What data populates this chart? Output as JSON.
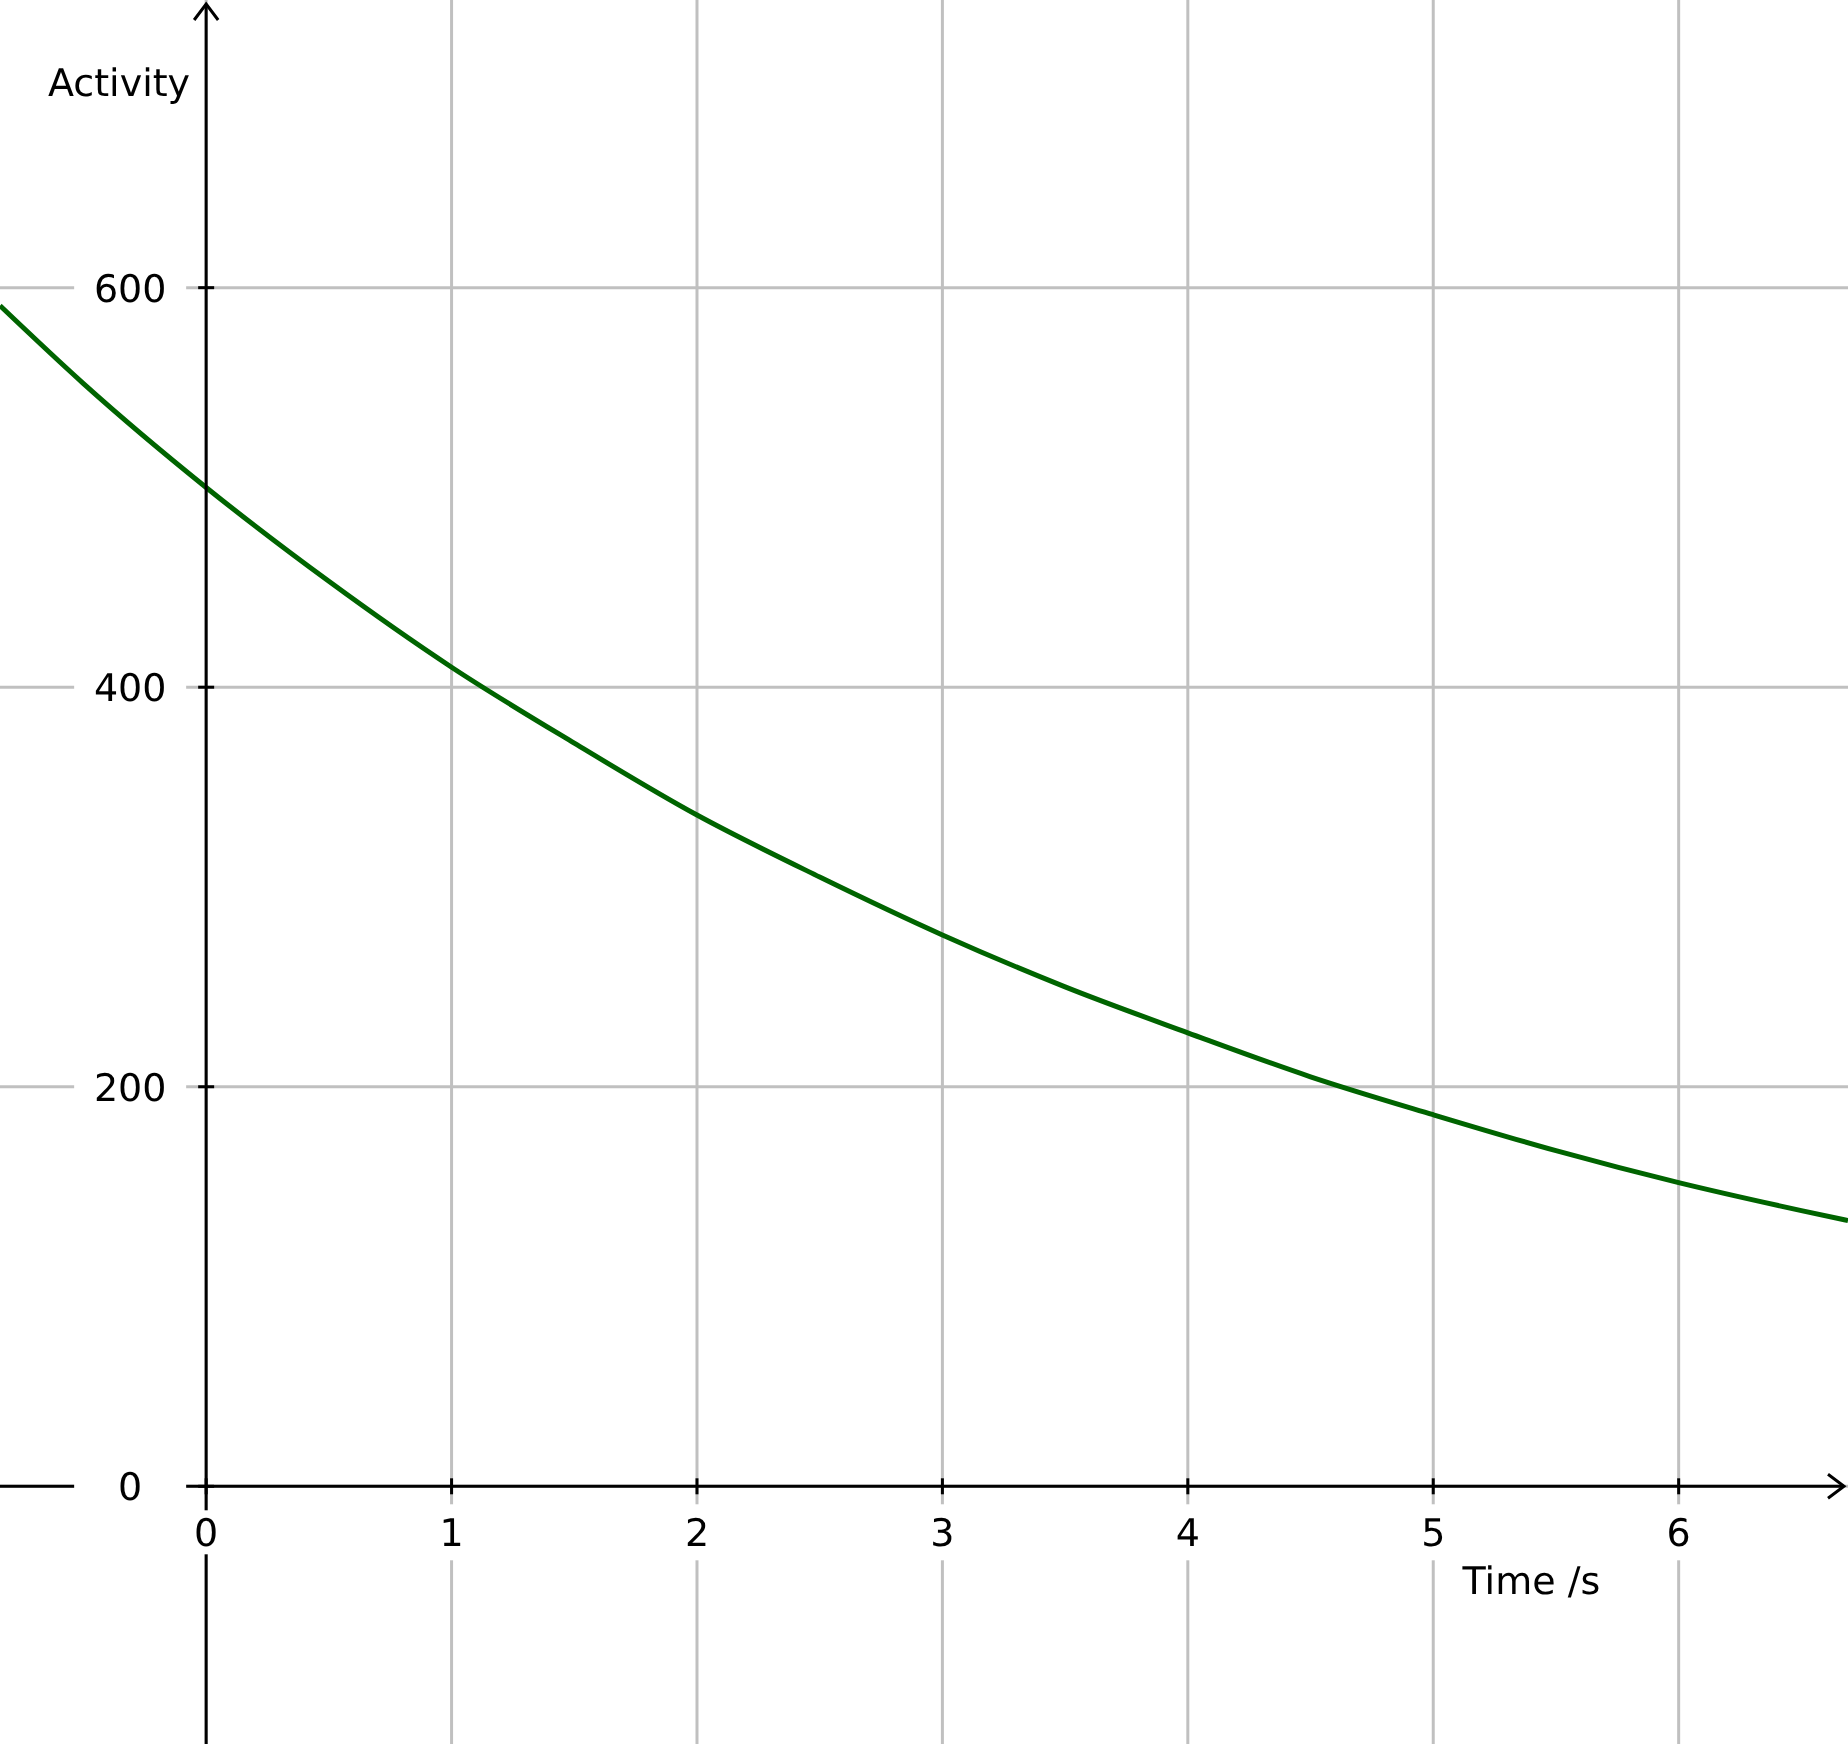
{
  "chart_data": {
    "type": "line",
    "xlabel": "Time /s",
    "ylabel": "Activity",
    "x": [
      -0.84,
      -0.5,
      0,
      0.5,
      1,
      1.5,
      2,
      2.5,
      3,
      3.5,
      4,
      4.5,
      5,
      5.5,
      6,
      6.5,
      6.69
    ],
    "series": [
      {
        "color": "#006400",
        "values": [
          591,
          552,
          500,
          453,
          410,
          372,
          336,
          305,
          276,
          250,
          227,
          205,
          186,
          168,
          152,
          138,
          133
        ]
      }
    ],
    "xlim": [
      -0.84,
      6.69
    ],
    "ylim": [
      -129,
      744
    ],
    "xticks": [
      0,
      1,
      2,
      3,
      4,
      5,
      6
    ],
    "yticks": [
      0,
      200,
      400,
      600
    ],
    "grid": true,
    "line_style": "solid",
    "marker": "none"
  }
}
